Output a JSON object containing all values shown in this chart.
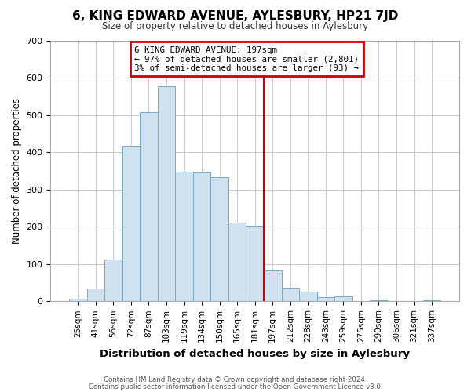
{
  "title": "6, KING EDWARD AVENUE, AYLESBURY, HP21 7JD",
  "subtitle": "Size of property relative to detached houses in Aylesbury",
  "xlabel": "Distribution of detached houses by size in Aylesbury",
  "ylabel": "Number of detached properties",
  "bar_labels": [
    "25sqm",
    "41sqm",
    "56sqm",
    "72sqm",
    "87sqm",
    "103sqm",
    "119sqm",
    "134sqm",
    "150sqm",
    "165sqm",
    "181sqm",
    "197sqm",
    "212sqm",
    "228sqm",
    "243sqm",
    "259sqm",
    "275sqm",
    "290sqm",
    "306sqm",
    "321sqm",
    "337sqm"
  ],
  "bar_values": [
    8,
    35,
    112,
    417,
    507,
    578,
    347,
    345,
    333,
    212,
    202,
    83,
    37,
    25,
    12,
    13,
    0,
    2,
    0,
    0,
    2
  ],
  "bar_color": "#d0e2f0",
  "bar_edge_color": "#7aaac8",
  "vline_color": "#cc0000",
  "annotation_title": "6 KING EDWARD AVENUE: 197sqm",
  "annotation_line1": "← 97% of detached houses are smaller (2,801)",
  "annotation_line2": "3% of semi-detached houses are larger (93) →",
  "annotation_box_color": "white",
  "annotation_box_edge": "#cc0000",
  "ylim": [
    0,
    700
  ],
  "yticks": [
    0,
    100,
    200,
    300,
    400,
    500,
    600,
    700
  ],
  "grid_color": "#cccccc",
  "bg_color": "white",
  "footer1": "Contains HM Land Registry data © Crown copyright and database right 2024.",
  "footer2": "Contains public sector information licensed under the Open Government Licence v3.0."
}
